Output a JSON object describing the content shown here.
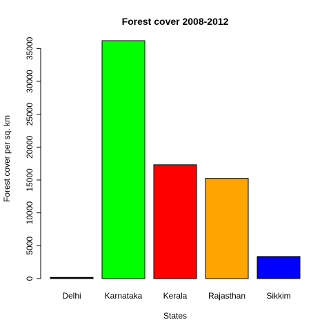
{
  "chart_data": {
    "type": "bar",
    "title": "Forest cover 2008-2012",
    "xlabel": "States",
    "ylabel": "Forest cover per sq. km",
    "categories": [
      "Delhi",
      "Karnataka",
      "Kerala",
      "Rajasthan",
      "Sikkim"
    ],
    "values": [
      180,
      36190,
      17320,
      15250,
      3360
    ],
    "colors": [
      "#000000",
      "#00ff00",
      "#ff0000",
      "#ffa500",
      "#0000ff"
    ],
    "yticks": [
      0,
      5000,
      10000,
      15000,
      20000,
      25000,
      30000,
      35000
    ],
    "ylim": [
      0,
      36190
    ],
    "grid": false,
    "legend": "none"
  }
}
